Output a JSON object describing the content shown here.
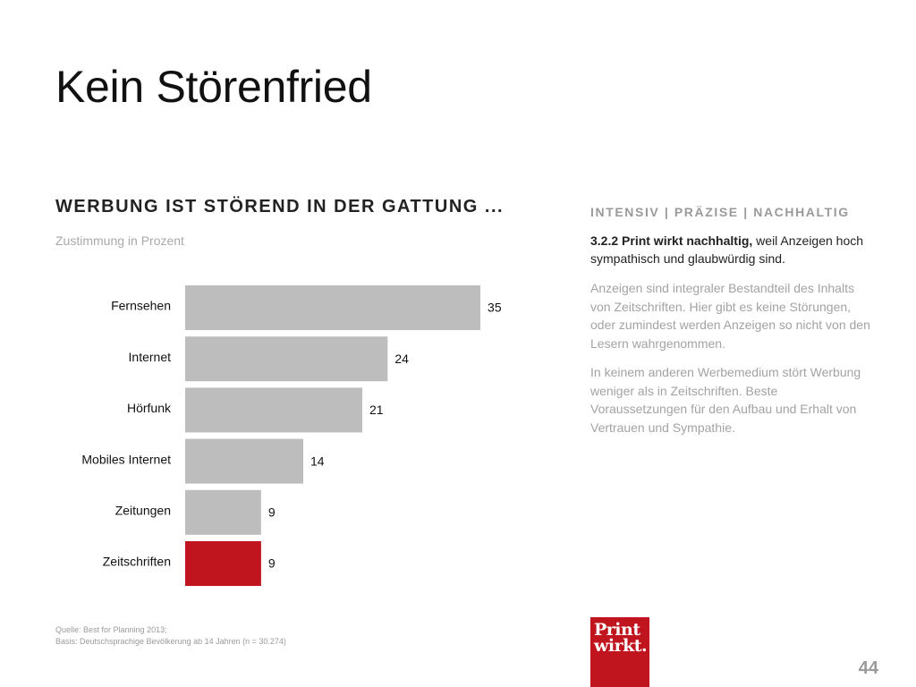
{
  "slide": {
    "title": "Kein Störenfried",
    "page_number": "44"
  },
  "chart_data": {
    "type": "bar",
    "orientation": "horizontal",
    "title": "WERBUNG IST STÖREND IN DER GATTUNG ...",
    "subtitle": "Zustimmung in Prozent",
    "categories": [
      "Fernsehen",
      "Internet",
      "Hörfunk",
      "Mobiles Internet",
      "Zeitungen",
      "Zeitschriften"
    ],
    "values": [
      35,
      24,
      21,
      14,
      9,
      9
    ],
    "highlight_category": "Zeitschriften",
    "xlim": [
      0,
      40
    ],
    "grid": false,
    "legend": "none",
    "colors": {
      "bar": "#bdbdbd",
      "highlight": "#c0141f"
    }
  },
  "side": {
    "header": "INTENSIV | PRÄZISE | NACHHALTIG",
    "lead_bold": "3.2.2 Print wirkt nachhaltig,",
    "lead_rest": " weil Anzeigen hoch sympathisch und glaubwürdig sind.",
    "para1": "Anzeigen sind integraler Bestandteil des Inhalts von Zeitschriften. Hier gibt es keine Störungen, oder zumindest werden Anzeigen so nicht von den Lesern wahrgenommen.",
    "para2": "In keinem anderen Werbemedium stört Werbung weniger als in Zeitschriften. Beste Voraussetzungen für den Aufbau und Erhalt von Vertrauen und Sympathie."
  },
  "footnotes": {
    "source": "Quelle: Best for Planning 2013;",
    "basis": "Basis: Deutschsprachige Bevölkerung ab 14 Jahren (n = 30.274)"
  },
  "logo": {
    "line1": "Print",
    "line2": "wirkt.",
    "color": "#c0141f"
  }
}
